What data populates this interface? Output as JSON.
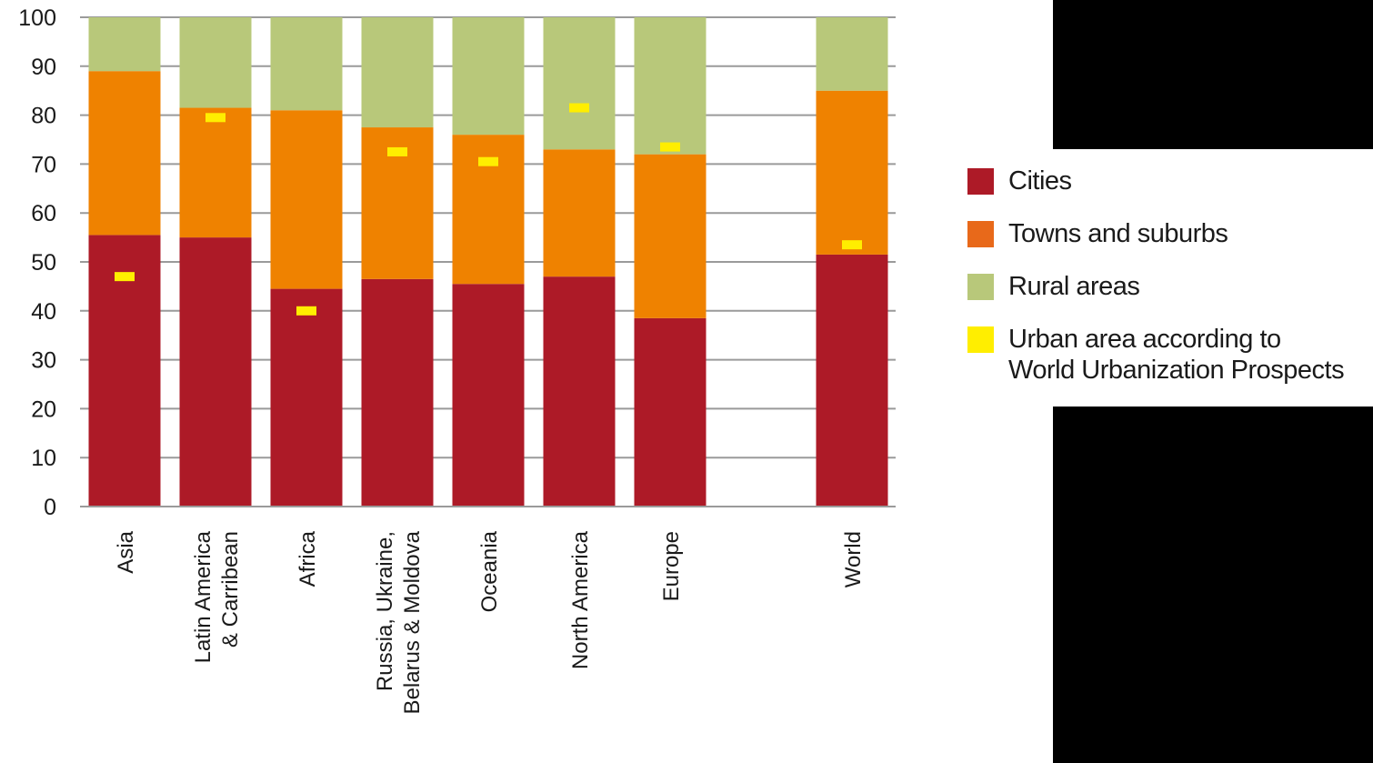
{
  "chart_data": {
    "type": "bar",
    "stacked": true,
    "categories": [
      "Asia",
      "Latin America & Carribean",
      "Africa",
      "Russia, Ukraine, Belarus & Moldova",
      "Oceania",
      "North America",
      "Europe",
      "",
      "World"
    ],
    "category_lines": [
      [
        "Asia"
      ],
      [
        "Latin America",
        "& Carribean"
      ],
      [
        "Africa"
      ],
      [
        "Russia, Ukraine,",
        "Belarus & Moldova"
      ],
      [
        "Oceania"
      ],
      [
        "North America"
      ],
      [
        "Europe"
      ],
      [],
      [
        "World"
      ]
    ],
    "series": [
      {
        "name": "Cities",
        "color": "#ad1a27",
        "values": [
          55.5,
          55,
          44.5,
          46.5,
          45.5,
          47,
          38.5,
          null,
          51.5
        ]
      },
      {
        "name": "Towns and suburbs",
        "color": "#ef8200",
        "values": [
          33.5,
          26.5,
          36.5,
          31,
          30.5,
          26,
          33.5,
          null,
          33.5
        ]
      },
      {
        "name": "Rural areas",
        "color": "#b8c87a",
        "values": [
          11,
          18.5,
          19,
          22.5,
          24,
          27,
          28,
          null,
          15
        ]
      }
    ],
    "markers": {
      "name": "Urban area according to World Urbanization Prospects",
      "color": "#ffee00",
      "values": [
        47,
        79.5,
        40,
        72.5,
        70.5,
        81.5,
        73.5,
        null,
        53.5
      ]
    },
    "ylim": [
      0,
      100
    ],
    "yticks": [
      0,
      10,
      20,
      30,
      40,
      50,
      60,
      70,
      80,
      90,
      100
    ],
    "grid": true,
    "legend_position": "right",
    "xlabel": "",
    "ylabel": "",
    "title": ""
  },
  "legend": {
    "items": [
      {
        "label": "Cities",
        "color": "#ad1a27"
      },
      {
        "label": "Towns and suburbs",
        "color": "#e8691a"
      },
      {
        "label": "Rural areas",
        "color": "#b8c87a"
      },
      {
        "label_line1": "Urban area according to",
        "label_line2": "World Urbanization Prospects",
        "color": "#ffee00"
      }
    ]
  }
}
